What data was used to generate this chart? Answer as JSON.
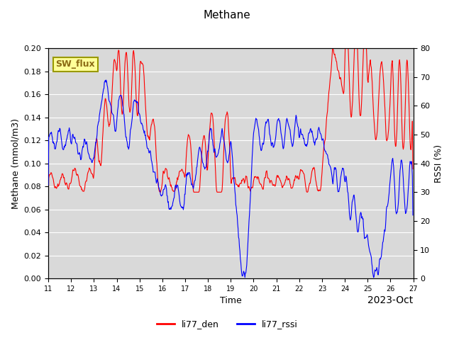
{
  "title": "Methane",
  "ylabel_left": "Methane (mmol/m3)",
  "ylabel_right": "RSSI (%)",
  "xlabel": "Time",
  "ylim_left": [
    0.0,
    0.2
  ],
  "ylim_right": [
    0,
    80
  ],
  "yticks_left": [
    0.0,
    0.02,
    0.04,
    0.06,
    0.08,
    0.1,
    0.12,
    0.14,
    0.16,
    0.18,
    0.2
  ],
  "yticks_right": [
    0,
    10,
    20,
    30,
    40,
    50,
    60,
    70,
    80
  ],
  "color_red": "#ff0000",
  "color_blue": "#0000ff",
  "legend_labels": [
    "li77_den",
    "li77_rssi"
  ],
  "label_box_text": "SW_flux",
  "background_color": "#d9d9d9",
  "figure_background": "#ffffff",
  "sw_flux_bg": "#ffff99",
  "sw_flux_border": "#999900"
}
